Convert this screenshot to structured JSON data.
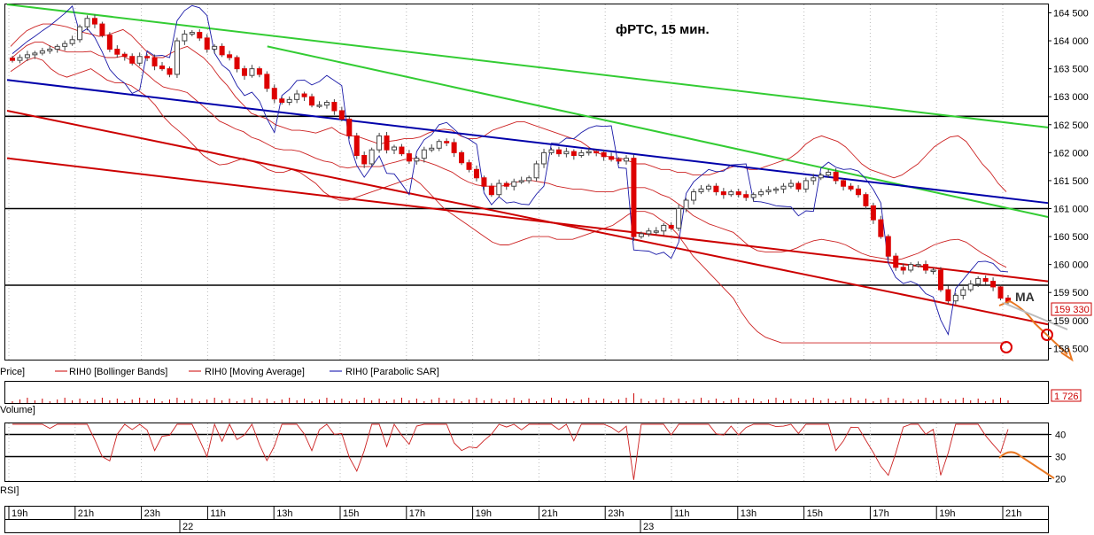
{
  "chart_data": {
    "type": "candlestick",
    "title": "фРТС,  15 мин.",
    "annotation_ma": "MA",
    "price_panel": {
      "label": "Price]",
      "ylim": [
        158300,
        164650
      ],
      "yticks": [
        "164 500",
        "164 000",
        "163 500",
        "163 000",
        "162 500",
        "162 000",
        "161 500",
        "161 000",
        "160 500",
        "160 000",
        "159 500",
        "159 000",
        "158 500"
      ],
      "yvalues": [
        164500,
        164000,
        163500,
        163000,
        162500,
        162000,
        161500,
        161000,
        160500,
        160000,
        159500,
        159000,
        158500
      ],
      "last_price_badge": "159 330",
      "horizontal_levels": [
        162650,
        161000,
        159630
      ],
      "legend": [
        {
          "name": "RIH0 [Bollinger Bands]",
          "color": "#cc0000"
        },
        {
          "name": "RIH0 [Moving Average]",
          "color": "#cc0000"
        },
        {
          "name": "RIH0 [Parabolic SAR]",
          "color": "#0000aa"
        }
      ],
      "closes": [
        163650,
        163700,
        163750,
        163780,
        163820,
        163850,
        163900,
        163950,
        164020,
        164250,
        164400,
        164300,
        164100,
        163850,
        163760,
        163720,
        163600,
        163720,
        163700,
        163550,
        163500,
        163400,
        164000,
        164120,
        164150,
        164050,
        163850,
        163900,
        163750,
        163700,
        163500,
        163380,
        163500,
        163400,
        163150,
        162960,
        162900,
        162950,
        163050,
        163000,
        162850,
        162850,
        162900,
        162750,
        162600,
        162300,
        161950,
        161800,
        162050,
        162300,
        162050,
        162100,
        161980,
        161850,
        161900,
        162050,
        162080,
        162200,
        162180,
        162000,
        161820,
        161700,
        161550,
        161400,
        161250,
        161450,
        161400,
        161480,
        161500,
        161550,
        161800,
        162000,
        162050,
        161980,
        162020,
        161950,
        162000,
        162020,
        162000,
        161930,
        161880,
        161850,
        161900,
        160500,
        160550,
        160600,
        160600,
        160700,
        160650,
        161000,
        161150,
        161300,
        161350,
        161400,
        161300,
        161250,
        161300,
        161250,
        161200,
        161250,
        161300,
        161330,
        161350,
        161400,
        161450,
        161350,
        161500,
        161550,
        161600,
        161650,
        161500,
        161400,
        161350,
        161250,
        161050,
        160800,
        160500,
        160150,
        159950,
        159900,
        160000,
        160000,
        159900,
        159900,
        159550,
        159350,
        159450,
        159550,
        159650,
        159750,
        159700,
        159600,
        159400,
        159330
      ],
      "bb_upper": [
        163900,
        164050,
        164180,
        164250,
        164300,
        164300,
        164280,
        164250,
        164200,
        164150,
        164120,
        164080,
        164100,
        164150,
        164200,
        164100,
        163950,
        163800,
        163700,
        163700,
        163780,
        163850,
        163900,
        163800,
        163700,
        163550,
        163350,
        163200,
        163000,
        162850,
        162700,
        162650,
        162600,
        162500,
        162450,
        162400,
        162400,
        162380,
        162350,
        162400,
        162450,
        162350,
        162300,
        162300,
        162250,
        162200,
        162150,
        162200,
        162220,
        162250,
        162250,
        162280,
        162350,
        162400,
        162420,
        162400,
        162300,
        162250,
        162250,
        162300,
        162400,
        162450,
        162500,
        162550,
        162550,
        162500,
        162450,
        162400,
        162350,
        162300,
        162250,
        162200,
        162100,
        162000,
        161950,
        161900,
        161900,
        161850,
        161800,
        161800,
        161750,
        161700,
        161700,
        161650,
        161650,
        161600,
        161600,
        161600,
        161650,
        161700,
        161750,
        161750,
        161700,
        161700,
        161750,
        161800,
        161850,
        161900,
        162000,
        162150,
        162250,
        162300,
        162250,
        162200,
        162100,
        161950,
        161800,
        161700,
        161650,
        161600,
        161550,
        161600,
        161700,
        161800,
        161950,
        162100,
        162200,
        162280,
        162300,
        162200,
        162000,
        161800,
        161650,
        161450,
        161300
      ],
      "bb_lower": [
        163450,
        163550,
        163650,
        163700,
        163650,
        163500,
        163400,
        163350,
        163400,
        163450,
        163500,
        163400,
        163300,
        163250,
        163250,
        163200,
        163100,
        163000,
        162850,
        162650,
        162500,
        162380,
        162250,
        162100,
        161950,
        161850,
        161780,
        161800,
        161850,
        161900,
        161850,
        161800,
        161700,
        161650,
        161650,
        161700,
        161650,
        161550,
        161450,
        161300,
        161200,
        161150,
        161150,
        161200,
        161250,
        161300,
        161350,
        161400,
        161450,
        161500,
        161550,
        161450,
        161300,
        161150,
        161000,
        160900,
        160800,
        160700,
        160600,
        160500,
        160400,
        160350,
        160350,
        160400,
        160450,
        160500,
        160500,
        160500,
        160450,
        160450,
        160450,
        160500,
        160550,
        160600,
        160650,
        160700,
        160800,
        160900,
        160950,
        160950,
        160900,
        160800,
        160700,
        160550,
        160350,
        160150,
        160000,
        159850,
        159700,
        159550,
        159400,
        159150,
        158950,
        158800,
        158700,
        158650,
        158600
      ]
    },
    "volume_panel": {
      "label": "Volume]",
      "last_value_badge": "1 726"
    },
    "rsi_panel": {
      "label": "RSI]",
      "yticks": [
        "40",
        "30",
        "20"
      ],
      "yvalues": [
        40,
        30,
        20
      ],
      "levels": [
        40,
        30
      ],
      "ylim": [
        19,
        45
      ]
    },
    "time_axis": {
      "hour_labels": [
        "19h",
        "21h",
        "23h",
        "11h",
        "13h",
        "15h",
        "17h",
        "19h",
        "21h",
        "23h",
        "11h",
        "13h",
        "15h",
        "17h",
        "19h",
        "21h"
      ],
      "date_labels": [
        "22",
        "23"
      ]
    },
    "trendlines": [
      {
        "color": "#33cc33",
        "from": [
          0,
          164650
        ],
        "to": [
          1,
          162450
        ]
      },
      {
        "color": "#33cc33",
        "from": [
          0.25,
          163900
        ],
        "to": [
          1,
          160850
        ]
      },
      {
        "color": "#0000aa",
        "from": [
          0,
          163300
        ],
        "to": [
          1,
          161100
        ]
      },
      {
        "color": "#cc0000",
        "from": [
          0,
          162750
        ],
        "to": [
          1,
          158930
        ]
      },
      {
        "color": "#cc0000",
        "from": [
          0,
          161900
        ],
        "to": [
          1,
          159700
        ]
      }
    ],
    "forecast_color": "#e87722"
  }
}
